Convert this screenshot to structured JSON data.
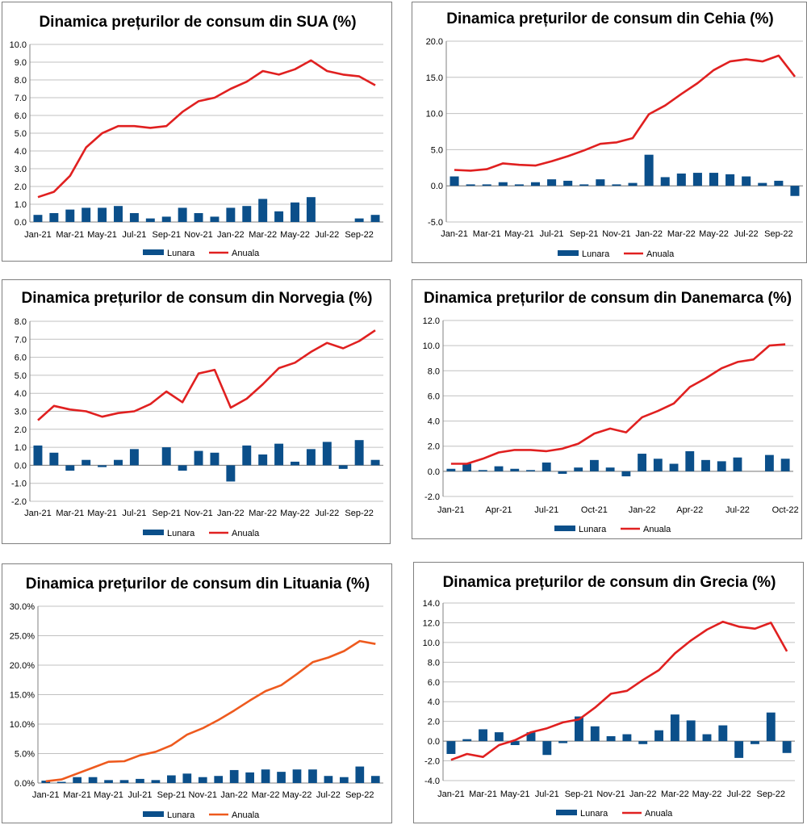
{
  "colors": {
    "bar": "#0b4f8a",
    "line_red": "#e02020",
    "line_orange": "#ee5a1e",
    "grid": "#c0c0c0",
    "axis": "#808080"
  },
  "chart_data": [
    {
      "id": "sua",
      "type": "bar+line",
      "title": "Dinamica prețurilor de consum din SUA (%)",
      "y_ticks": [
        "10.0",
        "9.0",
        "8.0",
        "7.0",
        "6.0",
        "5.0",
        "4.0",
        "3.0",
        "2.0",
        "1.0",
        "0.0"
      ],
      "ylim": [
        0,
        10
      ],
      "x_labels": [
        "Jan-21",
        "Mar-21",
        "May-21",
        "Jul-21",
        "Sep-21",
        "Nov-21",
        "Jan-22",
        "Mar-22",
        "May-22",
        "Jul-22",
        "Sep-22"
      ],
      "label_every": 2,
      "categories": [
        "Jan-21",
        "Feb-21",
        "Mar-21",
        "Apr-21",
        "May-21",
        "Jun-21",
        "Jul-21",
        "Aug-21",
        "Sep-21",
        "Oct-21",
        "Nov-21",
        "Dec-21",
        "Jan-22",
        "Feb-22",
        "Mar-22",
        "Apr-22",
        "May-22",
        "Jun-22",
        "Jul-22",
        "Aug-22",
        "Sep-22",
        "Oct-22"
      ],
      "series": [
        {
          "name": "Lunara",
          "kind": "bar",
          "values": [
            0.4,
            0.5,
            0.7,
            0.8,
            0.8,
            0.9,
            0.5,
            0.2,
            0.3,
            0.8,
            0.5,
            0.3,
            0.8,
            0.9,
            1.3,
            0.6,
            1.1,
            1.4,
            0.0,
            0.0,
            0.2,
            0.4
          ]
        },
        {
          "name": "Anuala",
          "kind": "line",
          "values": [
            1.4,
            1.7,
            2.6,
            4.2,
            5.0,
            5.4,
            5.4,
            5.3,
            5.4,
            6.2,
            6.8,
            7.0,
            7.5,
            7.9,
            8.5,
            8.3,
            8.6,
            9.1,
            8.5,
            8.3,
            8.2,
            7.7
          ]
        }
      ],
      "legend": [
        "Lunara",
        "Anuala"
      ]
    },
    {
      "id": "cehia",
      "type": "bar+line",
      "title": "Dinamica prețurilor de consum din Cehia (%)",
      "y_ticks": [
        "20.0",
        "15.0",
        "10.0",
        "5.0",
        "0.0",
        "-5.0"
      ],
      "ylim": [
        -5,
        20
      ],
      "x_labels": [
        "Jan-21",
        "Mar-21",
        "May-21",
        "Jul-21",
        "Sep-21",
        "Nov-21",
        "Jan-22",
        "Mar-22",
        "May-22",
        "Jul-22",
        "Sep-22"
      ],
      "label_every": 2,
      "categories": [
        "Jan-21",
        "Feb-21",
        "Mar-21",
        "Apr-21",
        "May-21",
        "Jun-21",
        "Jul-21",
        "Aug-21",
        "Sep-21",
        "Oct-21",
        "Nov-21",
        "Dec-21",
        "Jan-22",
        "Feb-22",
        "Mar-22",
        "Apr-22",
        "May-22",
        "Jun-22",
        "Jul-22",
        "Aug-22",
        "Sep-22",
        "Oct-22"
      ],
      "series": [
        {
          "name": "Lunara",
          "kind": "bar",
          "values": [
            1.3,
            0.2,
            0.2,
            0.5,
            0.2,
            0.5,
            0.9,
            0.7,
            0.2,
            0.9,
            0.2,
            0.4,
            4.3,
            1.2,
            1.7,
            1.8,
            1.8,
            1.6,
            1.3,
            0.4,
            0.7,
            -1.4
          ]
        },
        {
          "name": "Anuala",
          "kind": "line",
          "values": [
            2.2,
            2.1,
            2.3,
            3.1,
            2.9,
            2.8,
            3.4,
            4.1,
            4.9,
            5.8,
            6.0,
            6.6,
            9.9,
            11.1,
            12.7,
            14.2,
            16.0,
            17.2,
            17.5,
            17.2,
            18.0,
            15.1
          ]
        }
      ],
      "legend": [
        "Lunara",
        "Anuala"
      ]
    },
    {
      "id": "norvegia",
      "type": "bar+line",
      "title": "Dinamica prețurilor de consum din Norvegia (%)",
      "y_ticks": [
        "8.0",
        "7.0",
        "6.0",
        "5.0",
        "4.0",
        "3.0",
        "2.0",
        "1.0",
        "0.0",
        "-1.0",
        "-2.0"
      ],
      "ylim": [
        -2,
        8
      ],
      "x_labels": [
        "Jan-21",
        "Mar-21",
        "May-21",
        "Jul-21",
        "Sep-21",
        "Nov-21",
        "Jan-22",
        "Mar-22",
        "May-22",
        "Jul-22",
        "Sep-22"
      ],
      "label_every": 2,
      "categories": [
        "Jan-21",
        "Feb-21",
        "Mar-21",
        "Apr-21",
        "May-21",
        "Jun-21",
        "Jul-21",
        "Aug-21",
        "Sep-21",
        "Oct-21",
        "Nov-21",
        "Dec-21",
        "Jan-22",
        "Feb-22",
        "Mar-22",
        "Apr-22",
        "May-22",
        "Jun-22",
        "Jul-22",
        "Aug-22",
        "Sep-22",
        "Oct-22"
      ],
      "series": [
        {
          "name": "Lunara",
          "kind": "bar",
          "values": [
            1.1,
            0.7,
            -0.3,
            0.3,
            -0.1,
            0.3,
            0.9,
            0.0,
            1.0,
            -0.3,
            0.8,
            0.7,
            -0.9,
            1.1,
            0.6,
            1.2,
            0.2,
            0.9,
            1.3,
            -0.2,
            1.4,
            0.3
          ]
        },
        {
          "name": "Anuala",
          "kind": "line",
          "values": [
            2.5,
            3.3,
            3.1,
            3.0,
            2.7,
            2.9,
            3.0,
            3.4,
            4.1,
            3.5,
            5.1,
            5.3,
            3.2,
            3.7,
            4.5,
            5.4,
            5.7,
            6.3,
            6.8,
            6.5,
            6.9,
            7.5
          ]
        }
      ],
      "legend": [
        "Lunara",
        "Anuala"
      ]
    },
    {
      "id": "danemarca",
      "type": "bar+line",
      "title": "Dinamica prețurilor de consum din Danemarca (%)",
      "y_ticks": [
        "12.0",
        "10.0",
        "8.0",
        "6.0",
        "4.0",
        "2.0",
        "0.0",
        "-2.0"
      ],
      "ylim": [
        -2,
        12
      ],
      "x_labels": [
        "Jan-21",
        "Apr-21",
        "Jul-21",
        "Oct-21",
        "Jan-22",
        "Apr-22",
        "Jul-22",
        "Oct-22"
      ],
      "label_every": 3,
      "categories": [
        "Jan-21",
        "Feb-21",
        "Mar-21",
        "Apr-21",
        "May-21",
        "Jun-21",
        "Jul-21",
        "Aug-21",
        "Sep-21",
        "Oct-21",
        "Nov-21",
        "Dec-21",
        "Jan-22",
        "Feb-22",
        "Mar-22",
        "Apr-22",
        "May-22",
        "Jun-22",
        "Jul-22",
        "Aug-22",
        "Sep-22",
        "Oct-22"
      ],
      "series": [
        {
          "name": "Lunara",
          "kind": "bar",
          "values": [
            0.2,
            0.6,
            0.1,
            0.4,
            0.2,
            0.1,
            0.7,
            -0.2,
            0.3,
            0.9,
            0.3,
            -0.4,
            1.4,
            1.0,
            0.6,
            1.6,
            0.9,
            0.8,
            1.1,
            0.0,
            1.3,
            1.0
          ]
        },
        {
          "name": "Anuala",
          "kind": "line",
          "values": [
            0.6,
            0.6,
            1.0,
            1.5,
            1.7,
            1.7,
            1.6,
            1.8,
            2.2,
            3.0,
            3.4,
            3.1,
            4.3,
            4.8,
            5.4,
            6.7,
            7.4,
            8.2,
            8.7,
            8.9,
            10.0,
            10.1
          ]
        }
      ],
      "legend": [
        "Lunara",
        "Anuala"
      ]
    },
    {
      "id": "lituania",
      "type": "bar+line",
      "title": "Dinamica prețurilor de consum din Lituania (%)",
      "y_ticks": [
        "30.0%",
        "25.0%",
        "20.0%",
        "15.0%",
        "10.0%",
        "5.0%",
        "0.0%"
      ],
      "ylim": [
        0,
        30
      ],
      "x_labels": [
        "Jan-21",
        "Mar-21",
        "May-21",
        "Jul-21",
        "Sep-21",
        "Nov-21",
        "Jan-22",
        "Mar-22",
        "May-22",
        "Jul-22",
        "Sep-22"
      ],
      "label_every": 2,
      "categories": [
        "Jan-21",
        "Feb-21",
        "Mar-21",
        "Apr-21",
        "May-21",
        "Jun-21",
        "Jul-21",
        "Aug-21",
        "Sep-21",
        "Oct-21",
        "Nov-21",
        "Dec-21",
        "Jan-22",
        "Feb-22",
        "Mar-22",
        "Apr-22",
        "May-22",
        "Jun-22",
        "Jul-22",
        "Aug-22",
        "Sep-22",
        "Oct-22"
      ],
      "series": [
        {
          "name": "Lunara",
          "kind": "bar",
          "values": [
            0.4,
            0.2,
            1.0,
            1.0,
            0.5,
            0.5,
            0.7,
            0.5,
            1.3,
            1.6,
            1.0,
            1.2,
            2.2,
            1.8,
            2.3,
            1.9,
            2.3,
            2.3,
            1.2,
            1.0,
            2.8,
            1.2
          ]
        },
        {
          "name": "Anuala",
          "kind": "line",
          "values": [
            0.3,
            0.6,
            1.6,
            2.6,
            3.6,
            3.7,
            4.7,
            5.3,
            6.4,
            8.2,
            9.3,
            10.7,
            12.3,
            14.0,
            15.6,
            16.6,
            18.5,
            20.5,
            21.3,
            22.4,
            24.1,
            23.6
          ]
        }
      ],
      "legend": [
        "Lunara",
        "Anuala"
      ]
    },
    {
      "id": "grecia",
      "type": "bar+line",
      "title": "Dinamica prețurilor de consum din Grecia (%)",
      "y_ticks": [
        "14.0",
        "12.0",
        "10.0",
        "8.0",
        "6.0",
        "4.0",
        "2.0",
        "0.0",
        "-2.0",
        "-4.0"
      ],
      "ylim": [
        -4,
        14
      ],
      "x_labels": [
        "Jan-21",
        "Mar-21",
        "May-21",
        "Jul-21",
        "Sep-21",
        "Nov-21",
        "Jan-22",
        "Mar-22",
        "May-22",
        "Jul-22",
        "Sep-22"
      ],
      "label_every": 2,
      "categories": [
        "Jan-21",
        "Feb-21",
        "Mar-21",
        "Apr-21",
        "May-21",
        "Jun-21",
        "Jul-21",
        "Aug-21",
        "Sep-21",
        "Oct-21",
        "Nov-21",
        "Dec-21",
        "Jan-22",
        "Feb-22",
        "Mar-22",
        "Apr-22",
        "May-22",
        "Jun-22",
        "Jul-22",
        "Aug-22",
        "Sep-22",
        "Oct-22"
      ],
      "series": [
        {
          "name": "Lunara",
          "kind": "bar",
          "values": [
            -1.3,
            0.2,
            1.2,
            0.9,
            -0.4,
            0.9,
            -1.4,
            -0.2,
            2.5,
            1.5,
            0.5,
            0.7,
            -0.3,
            1.1,
            2.7,
            2.1,
            0.7,
            1.6,
            -1.7,
            -0.3,
            2.9,
            -1.2
          ]
        },
        {
          "name": "Anuala",
          "kind": "line",
          "values": [
            -1.9,
            -1.3,
            -1.6,
            -0.4,
            0.1,
            0.9,
            1.3,
            1.9,
            2.2,
            3.4,
            4.8,
            5.1,
            6.2,
            7.2,
            8.9,
            10.2,
            11.3,
            12.1,
            11.6,
            11.4,
            12.0,
            9.1
          ]
        }
      ],
      "legend": [
        "Lunara",
        "Anuala"
      ]
    }
  ]
}
